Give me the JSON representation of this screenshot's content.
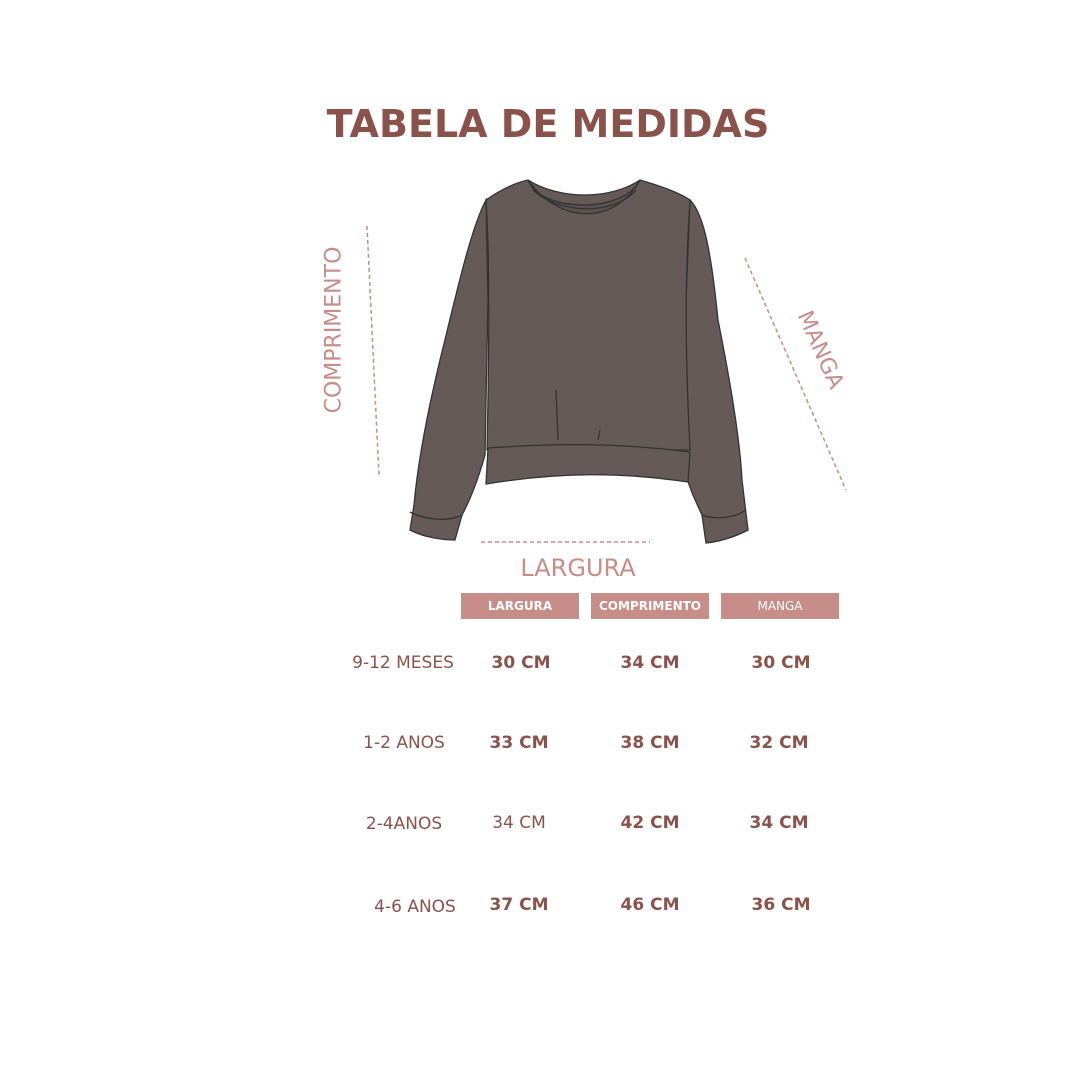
{
  "title": "TABELA DE MEDIDAS",
  "diagram": {
    "length_label": "COMPRIMENTO",
    "sleeve_label": "MANGA",
    "width_label": "LARGURA",
    "garment_icon": "sweatshirt-icon",
    "garment_color": "#665a58",
    "accent_color": "#c78d88"
  },
  "table": {
    "headers": [
      "LARGURA",
      "COMPRIMENTO",
      "MANGA"
    ],
    "rows": [
      {
        "size": "9-12 MESES",
        "values": [
          "30 CM",
          "34 CM",
          "30 CM"
        ]
      },
      {
        "size": "1-2 ANOS",
        "values": [
          "33 CM",
          "38  CM",
          "32  CM"
        ]
      },
      {
        "size": "2-4ANOS",
        "values": [
          "34 CM",
          "42 CM",
          "34  CM"
        ]
      },
      {
        "size": "4-6 ANOS",
        "values": [
          "37  CM",
          "46  CM",
          "36  CM"
        ]
      }
    ]
  },
  "colors": {
    "title": "#8a524b",
    "header_bg": "#c78d88",
    "text": "#8a524b"
  }
}
